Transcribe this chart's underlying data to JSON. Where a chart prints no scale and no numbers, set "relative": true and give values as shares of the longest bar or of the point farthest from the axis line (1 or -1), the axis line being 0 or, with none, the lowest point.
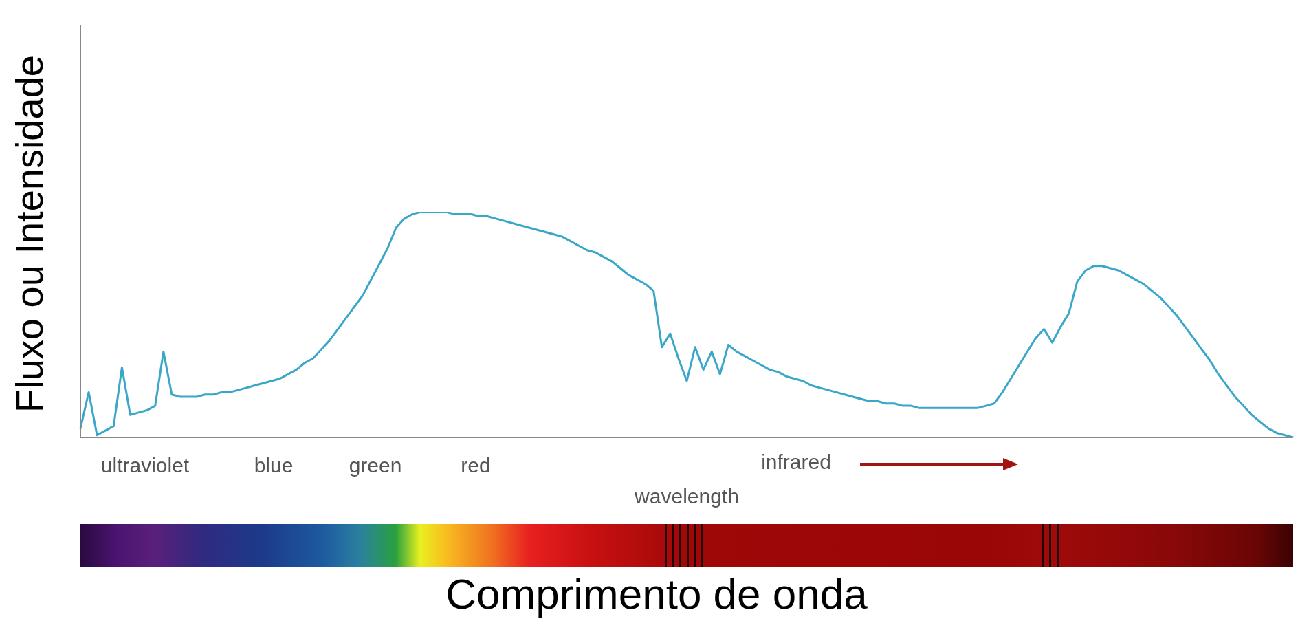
{
  "chart_data": {
    "type": "line",
    "relative": true,
    "xlabel": "Comprimento de onda",
    "ylabel": "Fluxo ou Intensidade",
    "legend": false,
    "marker": "none",
    "line_style": "solid",
    "annotations": [
      "ultraviolet",
      "blue",
      "green",
      "red",
      "infrared",
      "wavelength"
    ],
    "categories": [
      null,
      null,
      null,
      null,
      null,
      null,
      null,
      null,
      null,
      null,
      null,
      null,
      null,
      null,
      null,
      null,
      null,
      null,
      null,
      null,
      null,
      null,
      null,
      null,
      null,
      null,
      null,
      null,
      null,
      null,
      null,
      null,
      null,
      null,
      null,
      null,
      null,
      null,
      null,
      null,
      null,
      null,
      null,
      null,
      null,
      null,
      null,
      null,
      null,
      null,
      null,
      null,
      null,
      null,
      null,
      null,
      null,
      null,
      null,
      null,
      null,
      null,
      null,
      null,
      null,
      null,
      null,
      null,
      null,
      null,
      null,
      null,
      null,
      null,
      null,
      null,
      null,
      null,
      null,
      null,
      null,
      null,
      null,
      null,
      null,
      null,
      null,
      null,
      null,
      null,
      null,
      null,
      null,
      null,
      null,
      null,
      null,
      null,
      null,
      null,
      null,
      null,
      null,
      null,
      null,
      null,
      null,
      null,
      null,
      null,
      null,
      null,
      null,
      null,
      null,
      null,
      null,
      null,
      null,
      null,
      null,
      null,
      null,
      null,
      null,
      null,
      null,
      null,
      null,
      null,
      null,
      null,
      null,
      null,
      null,
      null,
      null,
      null,
      null,
      null,
      null,
      null,
      null,
      null,
      null,
      null,
      null
    ],
    "series": [
      {
        "color": "#3aa6c8",
        "values": [
          0.04,
          0.2,
          0.01,
          0.03,
          0.05,
          0.31,
          0.1,
          0.11,
          0.12,
          0.14,
          0.38,
          0.19,
          0.18,
          0.18,
          0.18,
          0.19,
          0.19,
          0.2,
          0.2,
          0.21,
          0.22,
          0.23,
          0.24,
          0.25,
          0.26,
          0.28,
          0.3,
          0.33,
          0.35,
          0.39,
          0.43,
          0.48,
          0.53,
          0.58,
          0.63,
          0.7,
          0.77,
          0.84,
          0.93,
          0.97,
          0.99,
          1,
          1,
          1,
          1,
          0.99,
          0.99,
          0.99,
          0.98,
          0.98,
          0.97,
          0.96,
          0.95,
          0.94,
          0.93,
          0.92,
          0.91,
          0.9,
          0.89,
          0.87,
          0.85,
          0.83,
          0.82,
          0.8,
          0.78,
          0.75,
          0.72,
          0.7,
          0.68,
          0.65,
          0.4,
          0.46,
          0.35,
          0.25,
          0.4,
          0.3,
          0.38,
          0.28,
          0.41,
          0.38,
          0.36,
          0.34,
          0.32,
          0.3,
          0.29,
          0.27,
          0.26,
          0.25,
          0.23,
          0.22,
          0.21,
          0.2,
          0.19,
          0.18,
          0.17,
          0.16,
          0.16,
          0.15,
          0.15,
          0.14,
          0.14,
          0.13,
          0.13,
          0.13,
          0.13,
          0.13,
          0.13,
          0.13,
          0.13,
          0.14,
          0.15,
          0.2,
          0.26,
          0.32,
          0.38,
          0.44,
          0.48,
          0.42,
          0.49,
          0.55,
          0.69,
          0.74,
          0.76,
          0.76,
          0.75,
          0.74,
          0.72,
          0.7,
          0.68,
          0.65,
          0.62,
          0.58,
          0.54,
          0.49,
          0.44,
          0.39,
          0.34,
          0.28,
          0.23,
          0.18,
          0.14,
          0.1,
          0.07,
          0.04,
          0.02,
          0.01,
          0
        ]
      }
    ]
  }
}
